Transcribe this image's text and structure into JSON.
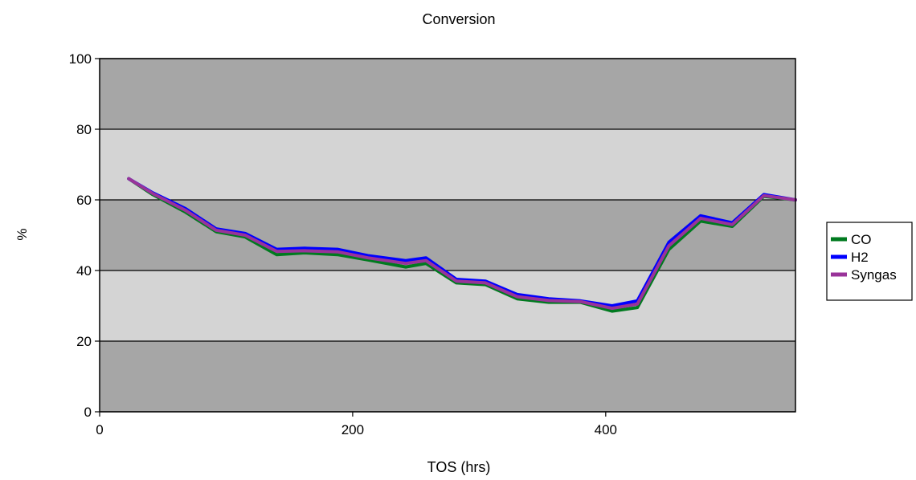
{
  "chart_data": {
    "type": "line",
    "title": "Conversion",
    "xlabel": "TOS (hrs)",
    "ylabel": "%",
    "xlim": [
      0,
      550
    ],
    "ylim": [
      0,
      100
    ],
    "xticks": [
      0,
      200,
      400
    ],
    "yticks": [
      0,
      20,
      40,
      60,
      80,
      100
    ],
    "grid": true,
    "background_bands": [
      "#a6a6a6",
      "#d4d4d4"
    ],
    "legend_position": "right",
    "x": [
      23,
      42,
      68,
      92,
      115,
      140,
      162,
      188,
      212,
      242,
      258,
      282,
      305,
      330,
      355,
      380,
      405,
      425,
      450,
      475,
      500,
      525,
      550
    ],
    "series": [
      {
        "name": "CO",
        "color": "#007a1f",
        "values": [
          66,
          61.5,
          56.5,
          51,
          49.5,
          44.5,
          45,
          44.5,
          43,
          41,
          42,
          36.5,
          36,
          32,
          31,
          31,
          28.5,
          29.5,
          46,
          54,
          52.5,
          61,
          60
        ]
      },
      {
        "name": "H2",
        "color": "#0000ff",
        "values": [
          66,
          62,
          57.5,
          51.8,
          50.5,
          46,
          46.3,
          46,
          44.2,
          42.8,
          43.6,
          37.5,
          37,
          33.2,
          32,
          31.4,
          30,
          31.4,
          48,
          55.5,
          53.5,
          61.5,
          60
        ]
      },
      {
        "name": "Syngas",
        "color": "#993399",
        "values": [
          66,
          61.8,
          57,
          51.4,
          50,
          45.4,
          45.6,
          45.3,
          43.6,
          42,
          42.8,
          37,
          36.5,
          32.6,
          31.5,
          31.2,
          29.3,
          30.5,
          47,
          54.8,
          53,
          61.2,
          60
        ]
      }
    ]
  }
}
